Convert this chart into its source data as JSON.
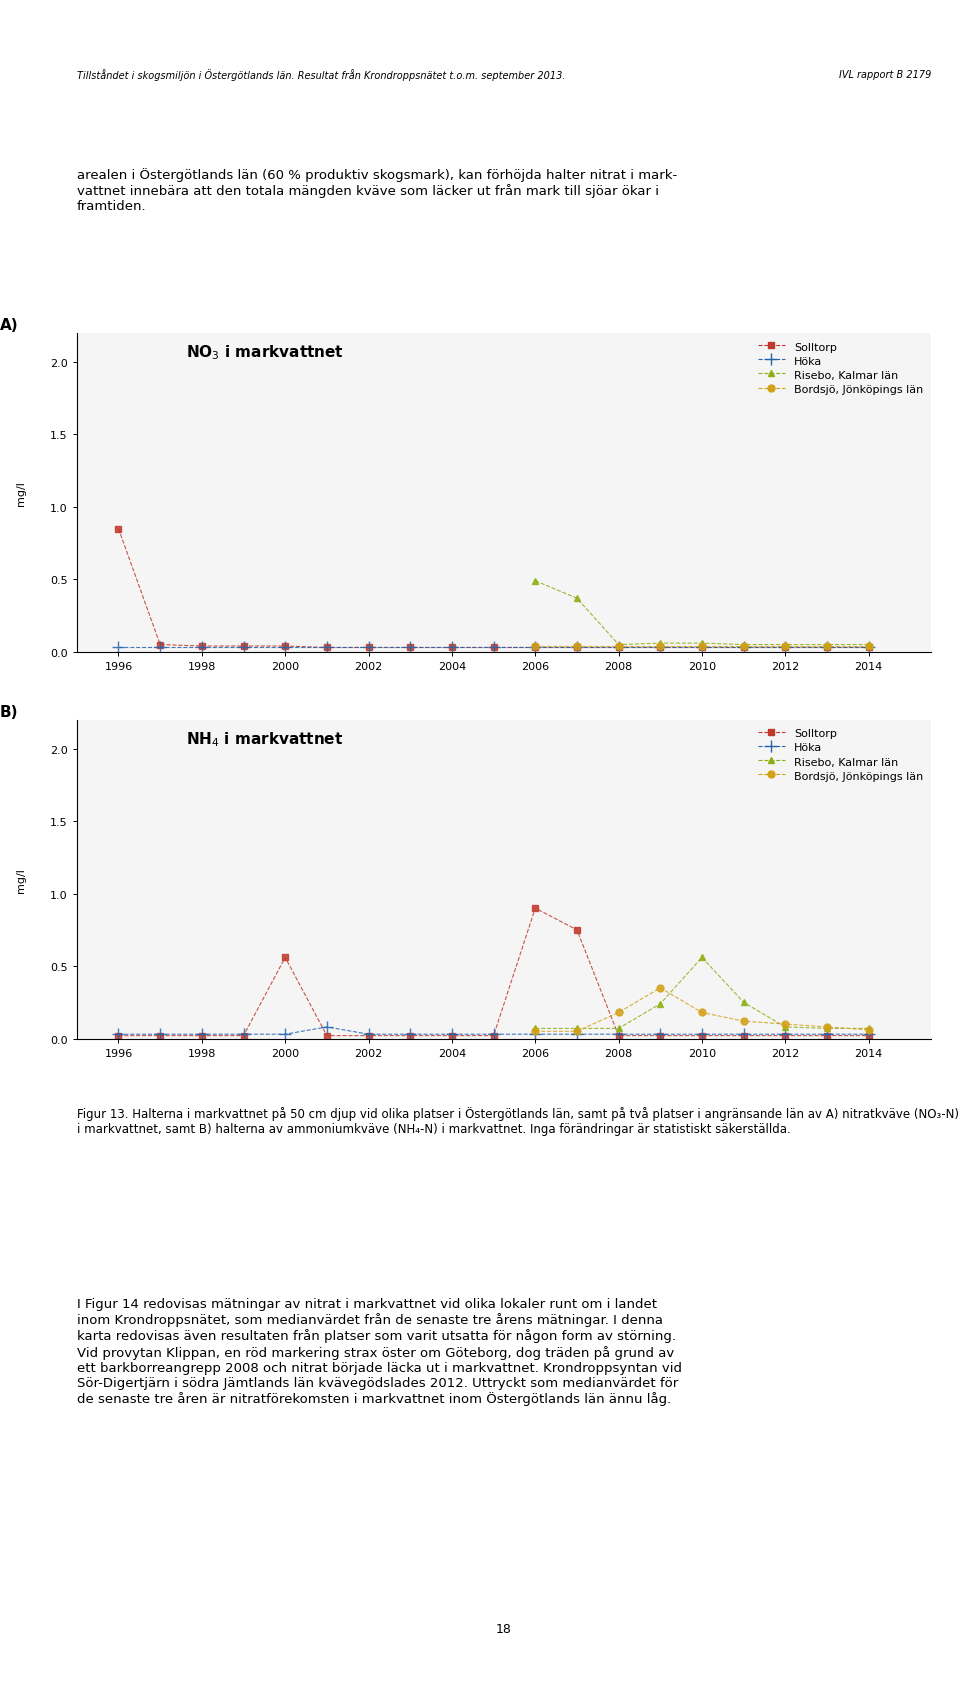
{
  "chart_A_title": "NO$_3$ i markvattnet",
  "chart_B_title": "NH$_4$ i markvattnet",
  "ylabel": "mg/l",
  "xlabel": "",
  "xlim": [
    1995,
    2015.5
  ],
  "xticks": [
    1996,
    1998,
    2000,
    2002,
    2004,
    2006,
    2008,
    2010,
    2012,
    2014
  ],
  "ylim_A": [
    0.0,
    2.2
  ],
  "yticks_A": [
    0.0,
    0.5,
    1.0,
    1.5,
    2.0
  ],
  "ylim_B": [
    0.0,
    2.2
  ],
  "yticks_B": [
    0.0,
    0.5,
    1.0,
    1.5,
    2.0
  ],
  "series": {
    "Solltorp": {
      "color": "#c0392b",
      "marker": "s",
      "linestyle": "--"
    },
    "Höka": {
      "color": "#2563ad",
      "marker": "+",
      "linestyle": "--"
    },
    "Risebo, Kalmar län": {
      "color": "#8db010",
      "marker": "^",
      "linestyle": "--"
    },
    "Bordsjö, Jönköpings län": {
      "color": "#d4a017",
      "marker": "o",
      "linestyle": "--"
    }
  },
  "A": {
    "Solltorp": {
      "x": [
        1996,
        1997,
        1998,
        1999,
        2000,
        2001,
        2002,
        2003,
        2004,
        2005,
        2006,
        2007,
        2008,
        2009,
        2010,
        2011,
        2012,
        2013,
        2014
      ],
      "y": [
        0.85,
        0.05,
        0.04,
        0.04,
        0.04,
        0.03,
        0.03,
        0.03,
        0.03,
        0.03,
        0.03,
        0.03,
        0.03,
        0.03,
        0.03,
        0.03,
        0.03,
        0.03,
        0.03
      ]
    },
    "Höka": {
      "x": [
        1996,
        1997,
        1998,
        1999,
        2000,
        2001,
        2002,
        2003,
        2004,
        2005,
        2006,
        2007,
        2008,
        2009,
        2010,
        2011,
        2012,
        2013,
        2014
      ],
      "y": [
        0.03,
        0.03,
        0.03,
        0.03,
        0.03,
        0.03,
        0.03,
        0.03,
        0.03,
        0.03,
        0.03,
        0.03,
        0.03,
        0.03,
        0.03,
        0.03,
        0.03,
        0.03,
        0.03
      ]
    },
    "Risebo, Kalmar län": {
      "x": [
        2006,
        2007,
        2008,
        2009,
        2010,
        2011,
        2012,
        2013,
        2014
      ],
      "y": [
        0.49,
        0.37,
        0.05,
        0.06,
        0.06,
        0.05,
        0.05,
        0.05,
        0.05
      ]
    },
    "Bordsjö, Jönköpings län": {
      "x": [
        2006,
        2007,
        2008,
        2009,
        2010,
        2011,
        2012,
        2013,
        2014
      ],
      "y": [
        0.04,
        0.04,
        0.04,
        0.04,
        0.04,
        0.04,
        0.04,
        0.04,
        0.04
      ]
    }
  },
  "B": {
    "Solltorp": {
      "x": [
        1996,
        1997,
        1998,
        1999,
        2000,
        2001,
        2002,
        2003,
        2004,
        2005,
        2006,
        2007,
        2008,
        2009,
        2010,
        2011,
        2012,
        2013,
        2014
      ],
      "y": [
        0.02,
        0.02,
        0.02,
        0.02,
        0.56,
        0.02,
        0.02,
        0.02,
        0.02,
        0.02,
        0.9,
        0.75,
        0.02,
        0.02,
        0.02,
        0.02,
        0.02,
        0.02,
        0.02
      ]
    },
    "Höka": {
      "x": [
        1996,
        1997,
        1998,
        1999,
        2000,
        2001,
        2002,
        2003,
        2004,
        2005,
        2006,
        2007,
        2008,
        2009,
        2010,
        2011,
        2012,
        2013,
        2014
      ],
      "y": [
        0.03,
        0.03,
        0.03,
        0.03,
        0.03,
        0.08,
        0.03,
        0.03,
        0.03,
        0.03,
        0.03,
        0.03,
        0.03,
        0.03,
        0.03,
        0.03,
        0.03,
        0.03,
        0.03
      ]
    },
    "Risebo, Kalmar län": {
      "x": [
        2006,
        2007,
        2008,
        2009,
        2010,
        2011,
        2012,
        2013,
        2014
      ],
      "y": [
        0.07,
        0.07,
        0.07,
        0.24,
        0.56,
        0.25,
        0.08,
        0.07,
        0.07
      ]
    },
    "Bordsjö, Jönköpings län": {
      "x": [
        2006,
        2007,
        2008,
        2009,
        2010,
        2011,
        2012,
        2013,
        2014
      ],
      "y": [
        0.05,
        0.05,
        0.18,
        0.35,
        0.18,
        0.12,
        0.1,
        0.08,
        0.06
      ]
    }
  },
  "panel_A_label": "A)",
  "panel_B_label": "B)",
  "background_color": "#ffffff",
  "plot_bg_color": "#f5f5f5",
  "text_body": [
    "arealen i Östergötlands län (60 % produktiv skogsmark), kan förhöjda halter nitrat i mark-",
    "vattnet innebära att den totala mängden kväve som läcker ut från mark till sjöar ökar i",
    "framtiden."
  ],
  "caption_title": "Figur 13.",
  "caption_text": "Halterna i markvattnet på 50 cm djup vid olika platser i Östergötlands län, samt på två platser i angränsande län av A) nitratkväve (NO₃-N) i markvattnet, samt B) halterna av ammoniumkväve (NH₄-N) i markvattnet. Inga förändringar är statistiskt säkerställda.",
  "footer_text": [
    "I Figur 14 redovisas mätningar av nitrat i markvattnet vid olika lokaler runt om i landet",
    "inom Krondroppsnätet, som medianvärdet från de senaste tre årens mätningar. I denna",
    "karta redovisas även resultaten från platser som varit utsatta för någon form av störning.",
    "Vid provytan Klippan, en röd markering strax öster om Göteborg, dog träden på grund av",
    "ett barkborreangrepp 2008 och nitrat började läcka ut i markvattnet. Krondroppsyntan vid",
    "Sör-Digertjärn i södra Jämtlands län kvävegödslades 2012. Uttryckt som medianvärdet för",
    "de senaste tre åren är nitratförekomsten i markvattnet inom Östergötlands län ännu låg."
  ],
  "page_number": "18",
  "header_left": "Tillståndet i skogsmiljön i Östergötlands län. Resultat från Krondroppsnätet t.o.m. september 2013.",
  "header_right": "IVL rapport B 2179"
}
